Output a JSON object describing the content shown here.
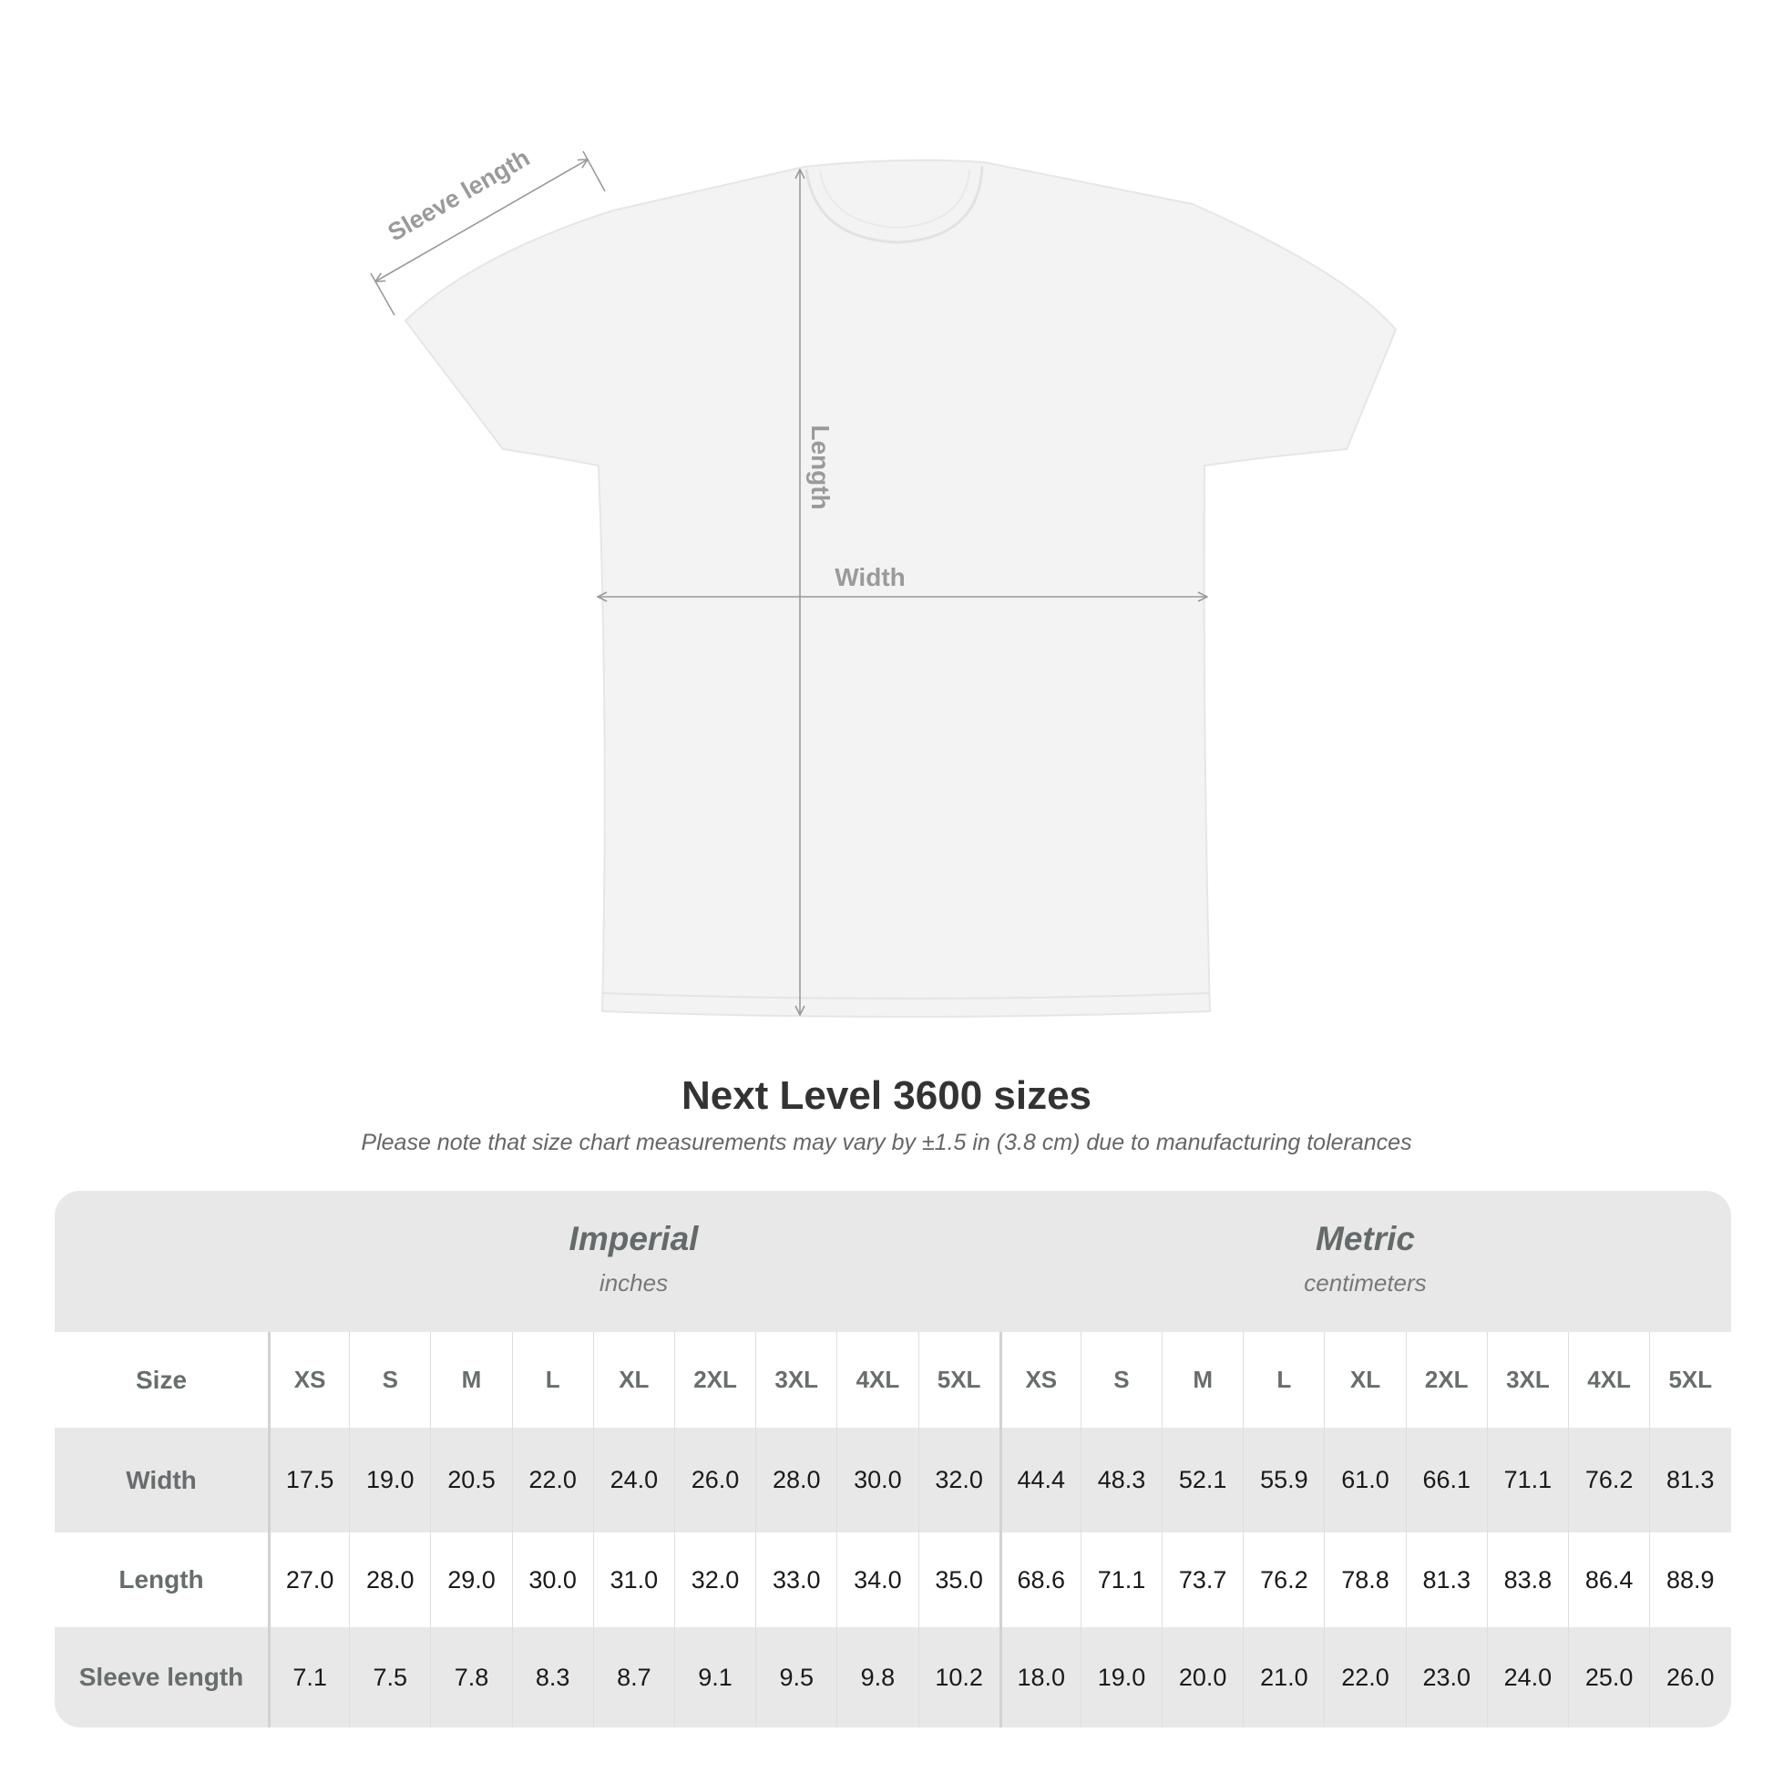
{
  "diagram": {
    "labels": {
      "sleeve": "Sleeve length",
      "length": "Length",
      "width": "Width"
    },
    "colors": {
      "shirt": "#f3f3f3",
      "measure_line": "#9a9a9a"
    }
  },
  "title": "Next Level 3600 sizes",
  "subtitle": "Please note that size chart measurements may vary by ±1.5 in (3.8 cm) due to manufacturing tolerances",
  "table": {
    "imperial": {
      "name": "Imperial",
      "unit": "inches"
    },
    "metric": {
      "name": "Metric",
      "unit": "centimeters"
    },
    "size_label": "Size",
    "sizes": [
      "XS",
      "S",
      "M",
      "L",
      "XL",
      "2XL",
      "3XL",
      "4XL",
      "5XL"
    ],
    "rows": [
      {
        "label": "Width",
        "imperial": [
          "17.5",
          "19.0",
          "20.5",
          "22.0",
          "24.0",
          "26.0",
          "28.0",
          "30.0",
          "32.0"
        ],
        "metric": [
          "44.4",
          "48.3",
          "52.1",
          "55.9",
          "61.0",
          "66.1",
          "71.1",
          "76.2",
          "81.3"
        ]
      },
      {
        "label": "Length",
        "imperial": [
          "27.0",
          "28.0",
          "29.0",
          "30.0",
          "31.0",
          "32.0",
          "33.0",
          "34.0",
          "35.0"
        ],
        "metric": [
          "68.6",
          "71.1",
          "73.7",
          "76.2",
          "78.8",
          "81.3",
          "83.8",
          "86.4",
          "88.9"
        ]
      },
      {
        "label": "Sleeve length",
        "imperial": [
          "7.1",
          "7.5",
          "7.8",
          "8.3",
          "8.7",
          "9.1",
          "9.5",
          "9.8",
          "10.2"
        ],
        "metric": [
          "18.0",
          "19.0",
          "20.0",
          "21.0",
          "22.0",
          "23.0",
          "24.0",
          "25.0",
          "26.0"
        ]
      }
    ],
    "colors": {
      "band": "#e8e8e8",
      "label_text": "#686d6d"
    }
  }
}
